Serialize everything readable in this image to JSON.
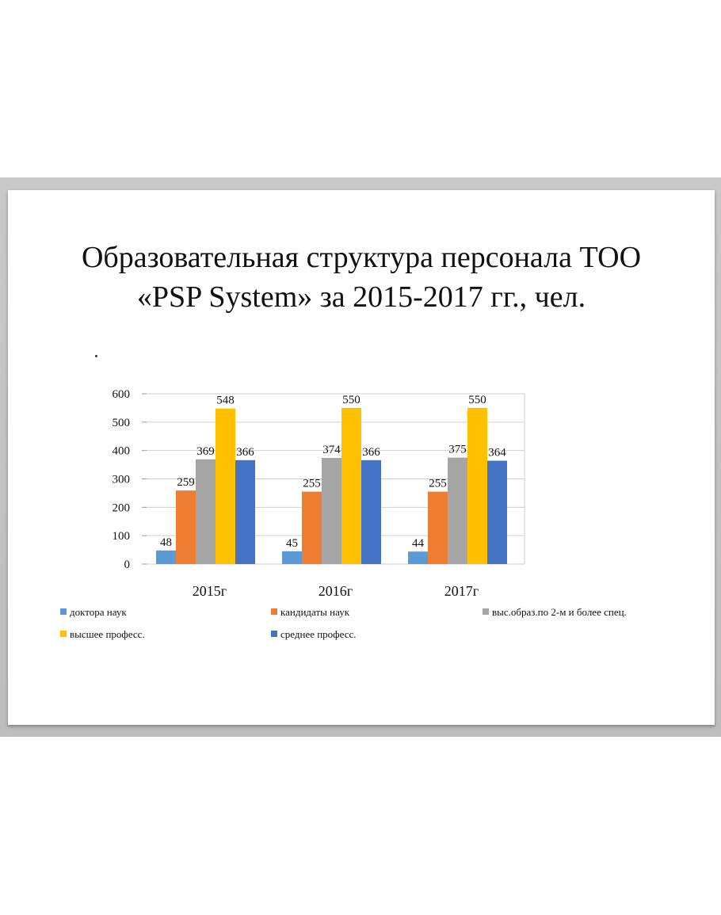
{
  "title_line1": "Образовательная структура персонала ТОО",
  "title_line2": "«PSP System» за 2015-2017 гг., чел.",
  "chart_data": {
    "type": "bar",
    "categories": [
      "2015г",
      "2016г",
      "2017г"
    ],
    "ylim": [
      0,
      600
    ],
    "yticks": [
      0,
      100,
      200,
      300,
      400,
      500,
      600
    ],
    "ytick_labels": [
      "0",
      "100",
      "200",
      "300",
      "400",
      "500",
      "600"
    ],
    "grid": true,
    "legend_position": "bottom",
    "series": [
      {
        "name": "доктора наук",
        "color": "#5b9bd5",
        "values": [
          48,
          45,
          44
        ]
      },
      {
        "name": "кандидаты наук",
        "color": "#ed7d31",
        "values": [
          259,
          255,
          255
        ]
      },
      {
        "name": "выс.образ.по 2-м и более спец.",
        "color": "#a5a5a5",
        "values": [
          369,
          374,
          375
        ]
      },
      {
        "name": "высшее професс.",
        "color": "#ffc000",
        "values": [
          548,
          550,
          550
        ]
      },
      {
        "name": "среднее професс.",
        "color": "#4472c4",
        "values": [
          366,
          366,
          364
        ]
      }
    ]
  }
}
